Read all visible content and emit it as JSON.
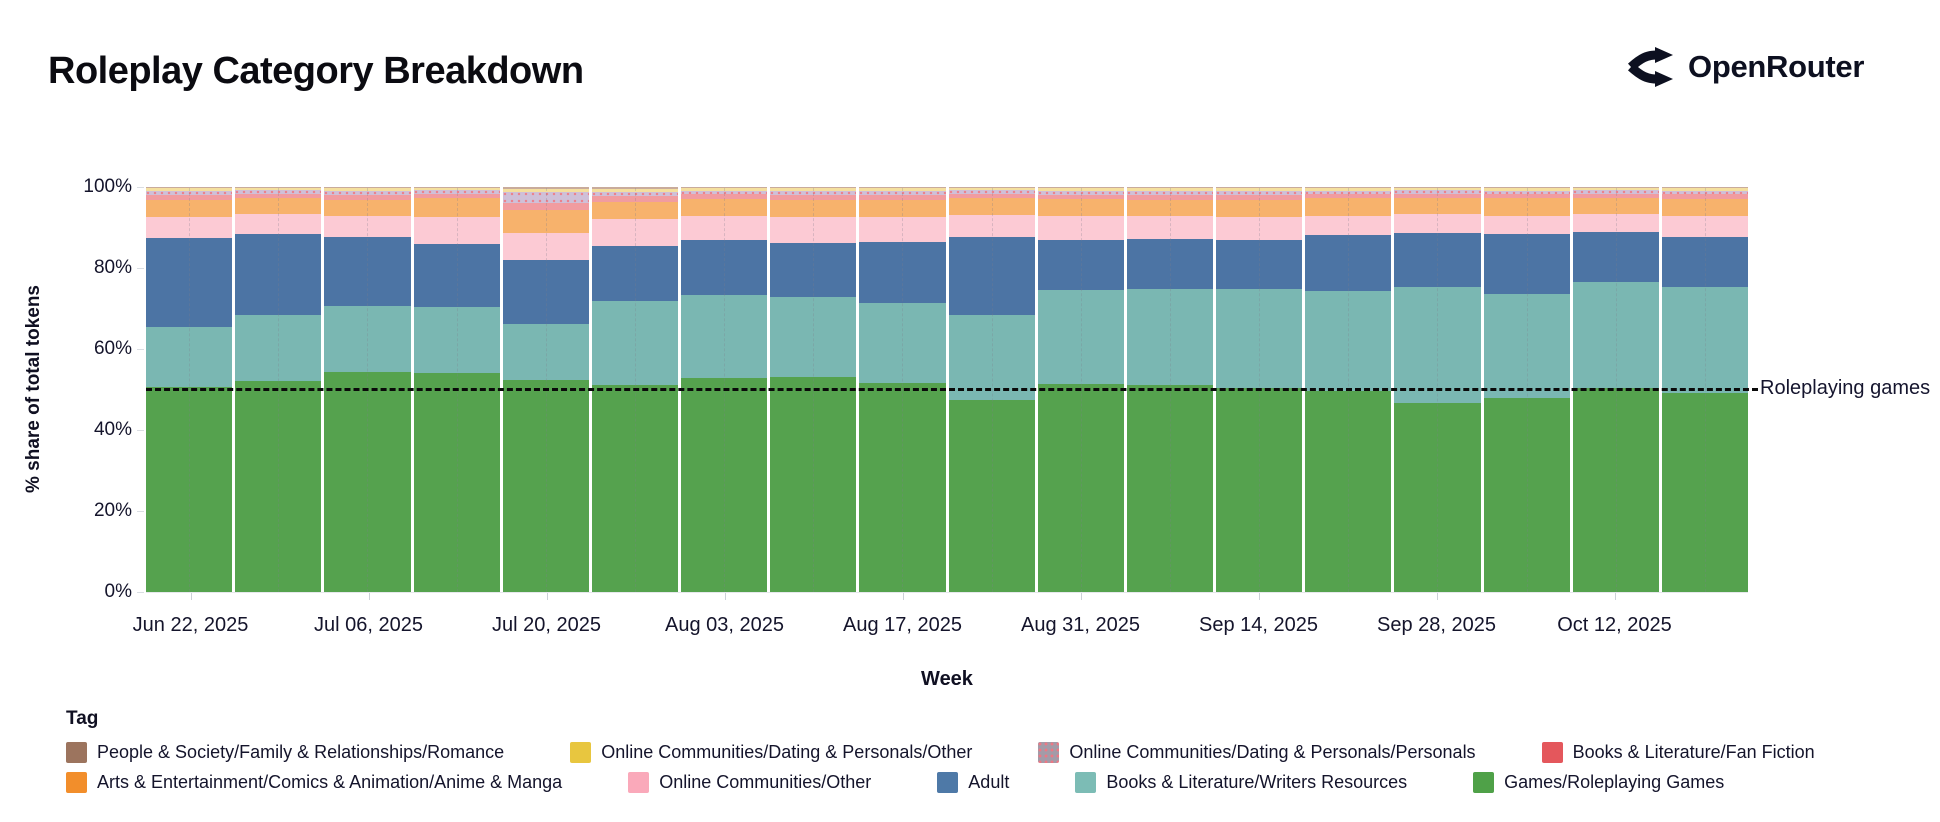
{
  "title": "Roleplay Category Breakdown",
  "logo": {
    "text": "OpenRouter",
    "icon": "split-route-icon"
  },
  "axes": {
    "y_title": "% share of total tokens",
    "x_title": "Week"
  },
  "annotation": {
    "label": "Roleplaying games",
    "y_value": 50
  },
  "legend": {
    "title": "Tag",
    "rows": [
      [
        "romance",
        "dating-personals-other",
        "dating-personals-personals",
        "fan-fiction"
      ],
      [
        "anime-manga",
        "online-communities-other",
        "adult",
        "writers-resources",
        "roleplaying-games"
      ]
    ]
  },
  "chart_data": {
    "type": "bar",
    "variant": "stacked-100pct",
    "title": "Roleplay Category Breakdown",
    "xlabel": "Week",
    "ylabel": "% share of total tokens",
    "ylim": [
      0,
      100
    ],
    "y_ticks": [
      {
        "value": 100,
        "label": "100%"
      },
      {
        "value": 80,
        "label": "80%"
      },
      {
        "value": 60,
        "label": "60%"
      },
      {
        "value": 40,
        "label": "40%"
      },
      {
        "value": 20,
        "label": "20%"
      },
      {
        "value": 0,
        "label": "0%"
      }
    ],
    "x": [
      "Jun 22, 2025",
      "Jun 29, 2025",
      "Jul 06, 2025",
      "Jul 13, 2025",
      "Jul 20, 2025",
      "Jul 27, 2025",
      "Aug 03, 2025",
      "Aug 10, 2025",
      "Aug 17, 2025",
      "Aug 24, 2025",
      "Aug 31, 2025",
      "Sep 07, 2025",
      "Sep 14, 2025",
      "Sep 21, 2025",
      "Sep 28, 2025",
      "Oct 05, 2025",
      "Oct 12, 2025",
      "Oct 19, 2025"
    ],
    "x_ticks": {
      "labels": [
        "Jun 22, 2025",
        "Jul 06, 2025",
        "Jul 20, 2025",
        "Aug 03, 2025",
        "Aug 17, 2025",
        "Aug 31, 2025",
        "Sep 14, 2025",
        "Sep 28, 2025",
        "Oct 12, 2025"
      ],
      "bar_indices": [
        0,
        2,
        4,
        6,
        8,
        10,
        12,
        14,
        16
      ]
    },
    "reference_line": {
      "y": 50,
      "label": "Roleplaying games",
      "style": "dashed",
      "color": "#0a0a0a"
    },
    "stack_order": "bottom-to-top",
    "series": [
      {
        "id": "roleplaying-games",
        "name": "Games/Roleplaying Games",
        "legend_color": "#4FA148",
        "bar_color": "#55A24E",
        "pattern": false,
        "values": [
          50.5,
          52.0,
          54.4,
          54.2,
          52.4,
          51.0,
          52.9,
          53.2,
          51.6,
          47.4,
          51.3,
          51.0,
          50.4,
          49.6,
          46.6,
          48.0,
          50.4,
          49.2
        ]
      },
      {
        "id": "writers-resources",
        "name": "Books & Literature/Writers Resources",
        "legend_color": "#7CBCB5",
        "bar_color": "#7AB7B2",
        "pattern": false,
        "values": [
          15.0,
          16.3,
          16.2,
          16.3,
          13.9,
          20.8,
          20.4,
          19.7,
          19.8,
          20.9,
          23.3,
          23.8,
          24.4,
          24.8,
          28.8,
          25.6,
          26.2,
          26.2
        ]
      },
      {
        "id": "adult",
        "name": "Adult",
        "legend_color": "#4E79A7",
        "bar_color": "#4C74A4",
        "pattern": false,
        "values": [
          21.8,
          20.2,
          17.1,
          15.5,
          15.7,
          13.7,
          13.6,
          13.4,
          15.1,
          19.4,
          12.3,
          12.3,
          12.1,
          13.7,
          13.3,
          14.9,
          12.3,
          12.3
        ]
      },
      {
        "id": "online-communities-other",
        "name": "Online Communities/Other",
        "legend_color": "#FAA9BA",
        "bar_color": "#FCCAD4",
        "pattern": false,
        "values": [
          5.4,
          4.8,
          5.2,
          6.5,
          6.6,
          6.6,
          6.0,
          6.2,
          6.1,
          5.3,
          6.0,
          5.8,
          5.6,
          4.8,
          4.7,
          4.4,
          4.4,
          5.2
        ]
      },
      {
        "id": "anime-manga",
        "name": "Arts & Entertainment/Comics & Animation/Anime & Manga",
        "legend_color": "#F28E2B",
        "bar_color": "#F7B26C",
        "pattern": false,
        "values": [
          4.1,
          3.9,
          3.9,
          4.9,
          5.7,
          4.3,
          4.2,
          4.3,
          4.2,
          4.2,
          4.1,
          3.9,
          4.3,
          4.3,
          4.0,
          4.3,
          4.1,
          4.2
        ]
      },
      {
        "id": "fan-fiction",
        "name": "Books & Literature/Fan Fiction",
        "legend_color": "#E4575C",
        "bar_color": "#F19CA0",
        "pattern": false,
        "values": [
          1.2,
          1.0,
          1.2,
          0.9,
          1.7,
          1.4,
          1.1,
          1.2,
          1.2,
          1.1,
          1.1,
          1.2,
          1.2,
          1.0,
          1.0,
          1.0,
          1.0,
          1.1
        ]
      },
      {
        "id": "dating-personals-personals",
        "name": "Online Communities/Dating & Personals/Personals",
        "legend_color": "#A39BA8",
        "bar_color": "#CFC0D8",
        "pattern": true,
        "values": [
          1.0,
          1.0,
          1.0,
          0.9,
          2.8,
          1.1,
          0.9,
          1.0,
          1.0,
          0.9,
          1.0,
          1.0,
          1.0,
          0.9,
          0.8,
          0.9,
          0.8,
          0.9
        ]
      },
      {
        "id": "dating-personals-other",
        "name": "Online Communities/Dating & Personals/Other",
        "legend_color": "#E8C63F",
        "bar_color": "#F4DF9E",
        "pattern": false,
        "values": [
          0.7,
          0.5,
          0.7,
          0.5,
          0.7,
          0.7,
          0.6,
          0.7,
          0.7,
          0.5,
          0.6,
          0.7,
          0.7,
          0.6,
          0.5,
          0.6,
          0.5,
          0.6
        ]
      },
      {
        "id": "romance",
        "name": "People & Society/Family & Relationships/Romance",
        "legend_color": "#9C745E",
        "bar_color": "#C9AB9B",
        "pattern": false,
        "values": [
          0.3,
          0.3,
          0.3,
          0.3,
          0.5,
          0.4,
          0.3,
          0.3,
          0.3,
          0.3,
          0.3,
          0.3,
          0.3,
          0.3,
          0.3,
          0.3,
          0.3,
          0.3
        ]
      }
    ]
  }
}
